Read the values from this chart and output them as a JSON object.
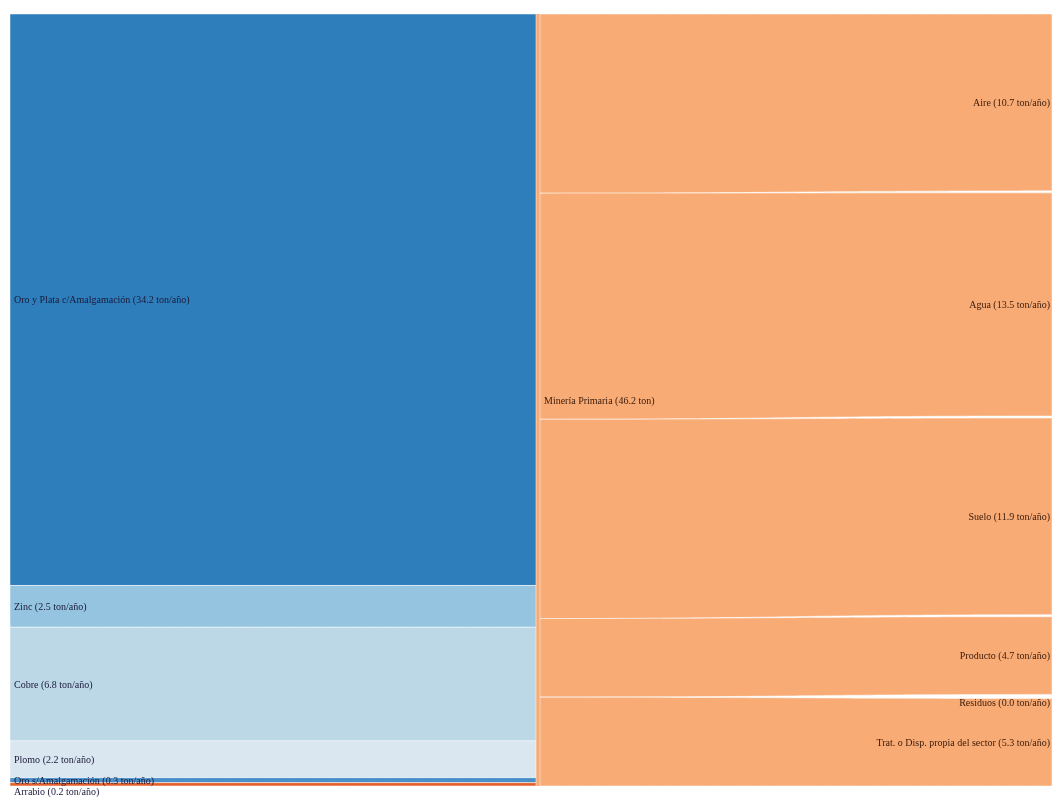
{
  "chart_data": [
    {
      "type": "other",
      "categories": [
        "Oro y Plata c/Amalgamación",
        "Zinc",
        "Cobre",
        "Plomo",
        "Oro s/Amalgamación",
        "Arrabio"
      ],
      "values": [
        34.2,
        2.5,
        6.8,
        2.2,
        0.3,
        0.2
      ],
      "value_labels": [
        "(34.2 ton/año)",
        "(2.5 ton/año)",
        "(6.8 ton/año)",
        "(2.2 ton/año)",
        "(0.3 ton/año)",
        "(0.2 ton/año)"
      ],
      "colors": [
        "#2e7ebc",
        "#94c4df",
        "#bcd7e6",
        "#dae6f0",
        "#4a90c8",
        "#e6602a"
      ],
      "annotations": [
        "Minería Primaria (46.2 ton)"
      ]
    },
    {
      "type": "other",
      "categories": [
        "Aire",
        "Agua",
        "Suelo",
        "Producto",
        "Residuos",
        "Trat. o Disp. propia del sector"
      ],
      "values": [
        10.7,
        13.5,
        11.9,
        4.7,
        0.0,
        5.3
      ],
      "value_labels": [
        "(10.7 ton/año)",
        "(13.5 ton/año)",
        "(11.9 ton/año)",
        "(4.7 ton/año)",
        "(0.0 ton/año)",
        "(5.3 ton/año)"
      ],
      "colors": [
        "#f8ab74",
        "#f8ab74",
        "#f8ab74",
        "#f8ab74",
        "#f8ab74",
        "#f8ab74"
      ]
    }
  ]
}
